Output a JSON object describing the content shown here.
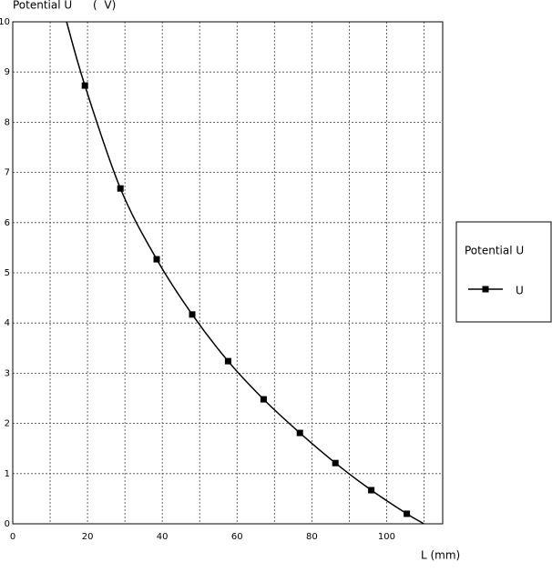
{
  "chart_data": {
    "type": "line",
    "y_label": "Potential U      (  V)",
    "x_label": "L (mm)",
    "legend_title": "Potential U",
    "xlim": [
      0,
      115
    ],
    "xticks": [
      0,
      20,
      40,
      60,
      80,
      100
    ],
    "ylim": [
      0,
      10
    ],
    "yticks": [
      0,
      1,
      2,
      3,
      4,
      5,
      6,
      7,
      8,
      9,
      10
    ],
    "grid": true,
    "series": [
      {
        "name": "U",
        "color": "#000000",
        "x": [
          19.3,
          28.8,
          38.5,
          48.0,
          57.6,
          67.1,
          76.8,
          86.3,
          95.9,
          105.4
        ],
        "values": [
          8.73,
          6.68,
          5.27,
          4.17,
          3.24,
          2.48,
          1.81,
          1.21,
          0.67,
          0.2
        ]
      }
    ],
    "curve": {
      "x": [
        14.4,
        19.3,
        28.8,
        38.5,
        48.0,
        57.6,
        67.1,
        76.8,
        86.3,
        95.9,
        105.4,
        110
      ],
      "values": [
        10,
        8.73,
        6.68,
        5.27,
        4.17,
        3.24,
        2.48,
        1.81,
        1.21,
        0.67,
        0.2,
        0
      ]
    }
  }
}
